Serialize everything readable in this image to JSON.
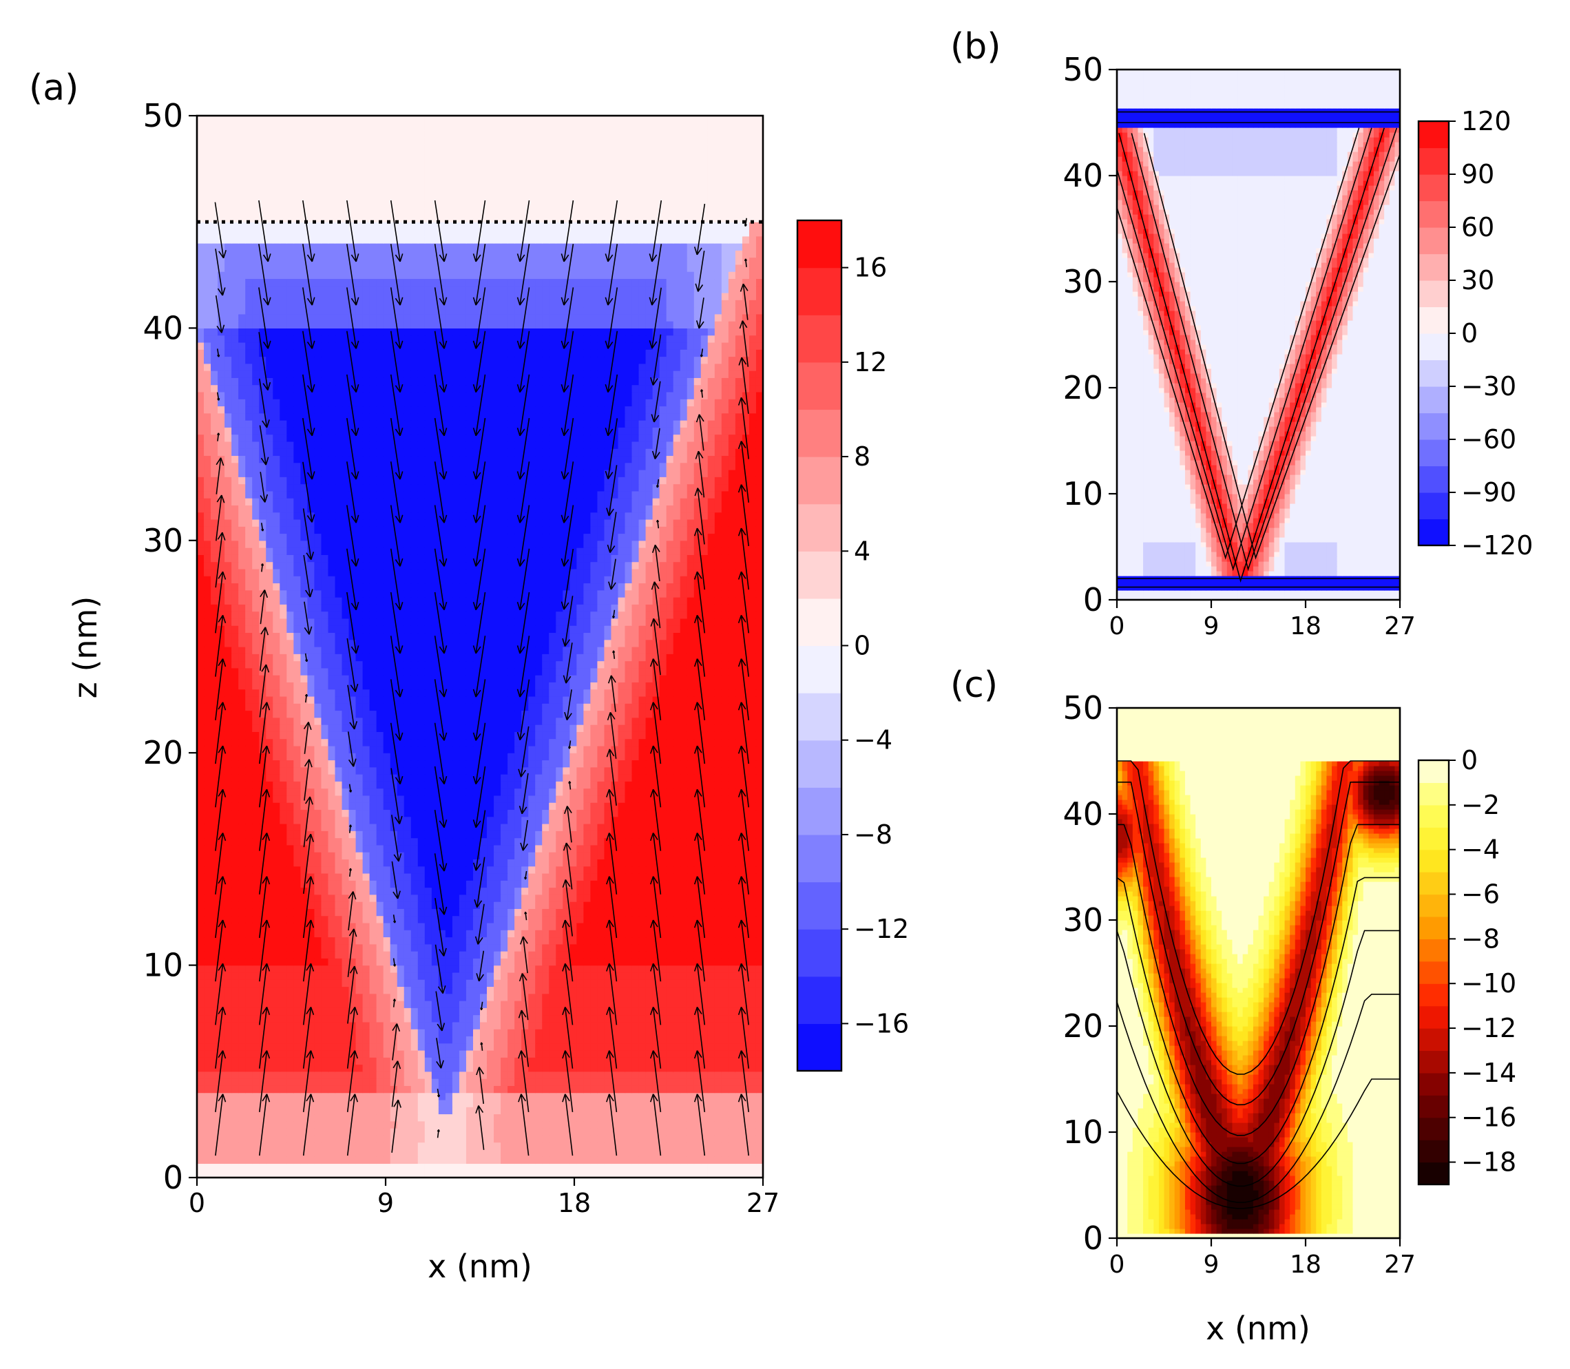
{
  "chart_data": [
    {
      "panel": "(a)",
      "type": "heatmap",
      "style": "filled contour + quiver arrows",
      "xlabel": "x (nm)",
      "ylabel": "z (nm)",
      "xlim": [
        0,
        27
      ],
      "ylim": [
        0,
        50
      ],
      "xticks": [
        "0",
        "9",
        "18",
        "27"
      ],
      "yticks": [
        "0",
        "10",
        "20",
        "30",
        "40",
        "50"
      ],
      "colormap": "bwr",
      "colorbar": {
        "min": -18,
        "max": 18,
        "ticks": [
          "16",
          "12",
          "8",
          "4",
          "0",
          "−4",
          "−8",
          "−12",
          "−16"
        ]
      },
      "field": {
        "top_interface_z": 45,
        "v_apex": [
          11.8,
          2.5
        ],
        "v_left_top": [
          0.6,
          38
        ],
        "v_right_top": [
          25.5,
          42.5
        ],
        "inside_value": -17,
        "outside_value": 16
      },
      "grid": false
    },
    {
      "panel": "(b)",
      "type": "heatmap",
      "style": "filled contour + contour lines",
      "xlim": [
        0,
        27
      ],
      "ylim": [
        0,
        50
      ],
      "xticks": [
        "0",
        "9",
        "18",
        "27"
      ],
      "yticks": [
        "0",
        "10",
        "20",
        "30",
        "40",
        "50"
      ],
      "colormap": "bwr",
      "colorbar": {
        "min": -120,
        "max": 120,
        "ticks": [
          "120",
          "90",
          "60",
          "30",
          "0",
          "−30",
          "−60",
          "−90",
          "−120"
        ]
      },
      "field": {
        "wall_peak_value": 110,
        "top_band_z": 45.5,
        "bottom_band_z": 1.5,
        "band_value": -110,
        "pocket_value": -35
      },
      "grid": false
    },
    {
      "panel": "(c)",
      "type": "heatmap",
      "style": "filled contour + contour lines",
      "xlabel": "x (nm)",
      "xlim": [
        0,
        27
      ],
      "ylim": [
        0,
        50
      ],
      "xticks": [
        "0",
        "9",
        "18",
        "27"
      ],
      "yticks": [
        "0",
        "10",
        "20",
        "30",
        "40",
        "50"
      ],
      "colormap": "hot",
      "colorbar": {
        "min": -19,
        "max": 0,
        "ticks": [
          "0",
          "−2",
          "−4",
          "−6",
          "−8",
          "−10",
          "−12",
          "−14",
          "−16",
          "−18"
        ]
      },
      "field": {
        "minimum_1": {
          "x": 11.8,
          "z": 4,
          "value": -19
        },
        "minimum_2": {
          "x": 25.5,
          "z": 42,
          "value": -18
        }
      },
      "grid": false
    }
  ],
  "panel_labels": [
    "(a)",
    "(b)",
    "(c)"
  ],
  "colors": {
    "bwr_low": "#0000ff",
    "bwr_mid": "#ffffff",
    "bwr_high": "#ff0000"
  }
}
